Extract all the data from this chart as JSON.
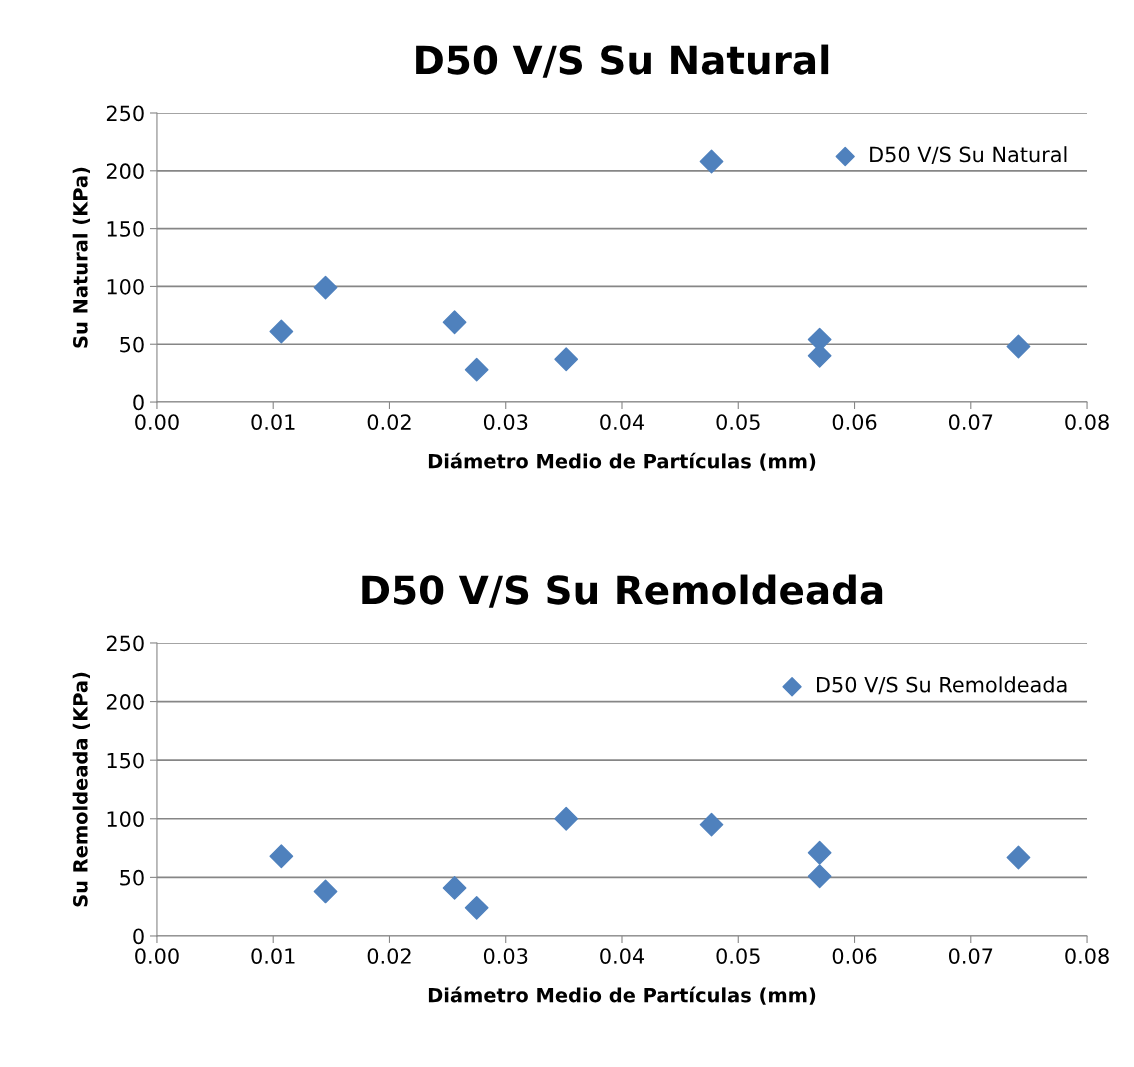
{
  "chart_data": [
    {
      "type": "scatter",
      "title": "D50 V/S Su Natural",
      "xlabel": "Diámetro Medio de Partículas (mm)",
      "ylabel": "Su Natural (KPa)",
      "x": [
        0.0107,
        0.0145,
        0.0256,
        0.0275,
        0.0352,
        0.0477,
        0.057,
        0.057,
        0.0741
      ],
      "series": [
        {
          "name": "D50 V/S Su Natural",
          "color": "#4f81bd",
          "values": [
            61,
            99,
            69,
            28,
            37,
            208,
            54,
            40,
            48
          ]
        }
      ],
      "xlim": [
        0,
        0.08
      ],
      "xticks": [
        {
          "value": 0,
          "label": "0.00"
        },
        {
          "value": 0.01,
          "label": "0.01"
        },
        {
          "value": 0.02,
          "label": "0.02"
        },
        {
          "value": 0.03,
          "label": "0.03"
        },
        {
          "value": 0.04,
          "label": "0.04"
        },
        {
          "value": 0.05,
          "label": "0.05"
        },
        {
          "value": 0.06,
          "label": "0.06"
        },
        {
          "value": 0.07,
          "label": "0.07"
        },
        {
          "value": 0.08,
          "label": "0.08"
        }
      ],
      "ylim": [
        0,
        250
      ],
      "yticks": [
        0,
        50,
        100,
        150,
        200,
        250
      ],
      "grid": "y",
      "legend": "top right",
      "marker": "diamond"
    },
    {
      "type": "scatter",
      "title": "D50 V/S Su Remoldeada",
      "xlabel": "Diámetro Medio de Partículas (mm)",
      "ylabel": "Su Remoldeada (KPa)",
      "x": [
        0.0107,
        0.0145,
        0.0256,
        0.0275,
        0.0352,
        0.0477,
        0.057,
        0.057,
        0.0741
      ],
      "series": [
        {
          "name": "D50 V/S Su Remoldeada",
          "color": "#4f81bd",
          "values": [
            68,
            38,
            41,
            24,
            100,
            95,
            71,
            51,
            67
          ]
        }
      ],
      "xlim": [
        0,
        0.08
      ],
      "xticks": [
        {
          "value": 0,
          "label": "0.00"
        },
        {
          "value": 0.01,
          "label": "0.01"
        },
        {
          "value": 0.02,
          "label": "0.02"
        },
        {
          "value": 0.03,
          "label": "0.03"
        },
        {
          "value": 0.04,
          "label": "0.04"
        },
        {
          "value": 0.05,
          "label": "0.05"
        },
        {
          "value": 0.06,
          "label": "0.06"
        },
        {
          "value": 0.07,
          "label": "0.07"
        },
        {
          "value": 0.08,
          "label": "0.08"
        }
      ],
      "ylim": [
        0,
        250
      ],
      "yticks": [
        0,
        50,
        100,
        150,
        200,
        250
      ],
      "grid": "y",
      "legend": "top right",
      "marker": "diamond"
    }
  ]
}
